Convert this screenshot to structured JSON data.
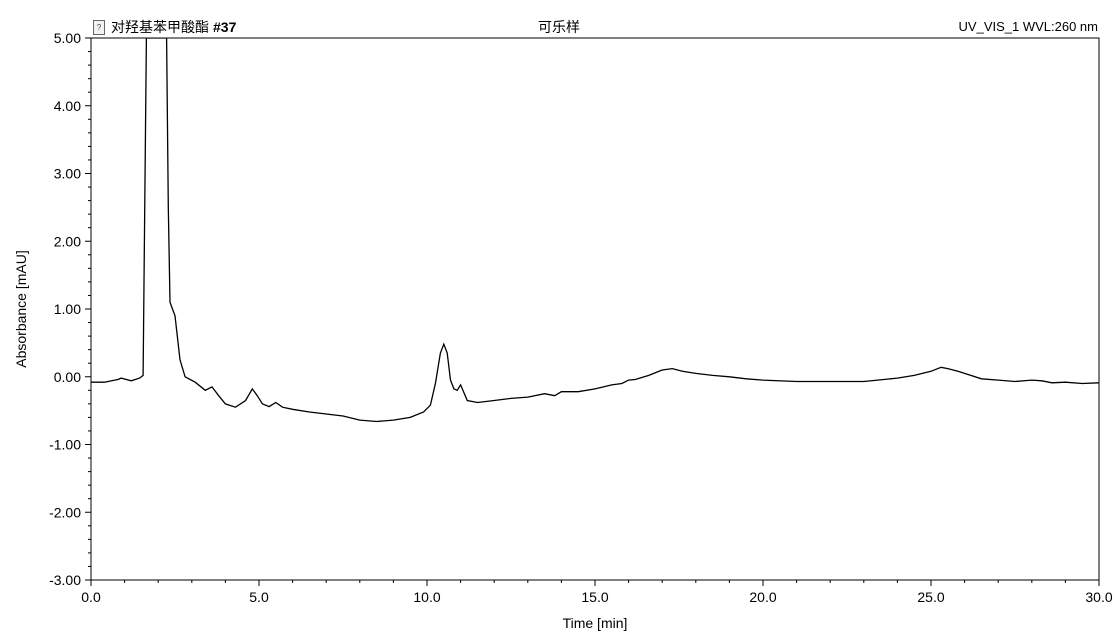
{
  "header": {
    "sample_name": "对羟基苯甲酸酯",
    "injection_number": "#37",
    "center_title": "可乐样",
    "channel": "UV_VIS_1 WVL:260 nm",
    "icon": "document-icon"
  },
  "chart_data": {
    "type": "line",
    "title": "可乐样",
    "xlabel": "Time [min]",
    "ylabel": "Absorbance [mAU]",
    "xlim": [
      0.0,
      30.0
    ],
    "ylim": [
      -3.0,
      5.0
    ],
    "x_ticks": [
      "0.0",
      "5.0",
      "10.0",
      "15.0",
      "20.0",
      "25.0",
      "30.0"
    ],
    "y_ticks": [
      "5.00",
      "4.00",
      "3.00",
      "2.00",
      "1.00",
      "0.00",
      "-1.00",
      "-2.00",
      "-3.00"
    ],
    "grid": false,
    "line_color": "#000000",
    "series": [
      {
        "x": [
          0.0,
          0.4,
          0.8,
          0.9,
          1.2,
          1.45,
          1.55,
          1.6,
          1.65,
          2.25,
          2.3,
          2.35,
          2.5,
          2.65,
          2.8,
          3.1,
          3.4,
          3.6,
          3.8,
          4.0,
          4.3,
          4.6,
          4.8,
          4.95,
          5.1,
          5.3,
          5.5,
          5.7,
          6.0,
          6.5,
          7.0,
          7.5,
          8.0,
          8.5,
          9.0,
          9.5,
          9.9,
          10.1,
          10.25,
          10.4,
          10.5,
          10.6,
          10.7,
          10.8,
          10.9,
          11.0,
          11.2,
          11.5,
          12.0,
          12.5,
          13.0,
          13.5,
          13.8,
          14.0,
          14.5,
          15.0,
          15.5,
          15.8,
          16.0,
          16.2,
          16.6,
          17.0,
          17.3,
          17.6,
          18.0,
          18.5,
          19.0,
          19.5,
          20.0,
          21.0,
          22.0,
          23.0,
          24.0,
          24.5,
          25.0,
          25.3,
          25.5,
          25.8,
          26.0,
          26.5,
          27.0,
          27.5,
          28.0,
          28.3,
          28.6,
          29.0,
          29.5,
          30.0
        ],
        "values": [
          -0.08,
          -0.08,
          -0.04,
          -0.02,
          -0.06,
          -0.02,
          0.02,
          2.6,
          5.0,
          5.0,
          2.5,
          1.1,
          0.9,
          0.25,
          0.0,
          -0.08,
          -0.2,
          -0.15,
          -0.28,
          -0.4,
          -0.45,
          -0.35,
          -0.18,
          -0.28,
          -0.4,
          -0.44,
          -0.38,
          -0.45,
          -0.48,
          -0.52,
          -0.55,
          -0.58,
          -0.64,
          -0.66,
          -0.64,
          -0.6,
          -0.52,
          -0.42,
          -0.1,
          0.35,
          0.48,
          0.35,
          -0.05,
          -0.18,
          -0.2,
          -0.12,
          -0.35,
          -0.38,
          -0.35,
          -0.32,
          -0.3,
          -0.25,
          -0.28,
          -0.22,
          -0.22,
          -0.18,
          -0.12,
          -0.1,
          -0.05,
          -0.04,
          0.02,
          0.1,
          0.12,
          0.08,
          0.05,
          0.02,
          0.0,
          -0.03,
          -0.05,
          -0.07,
          -0.07,
          -0.07,
          -0.02,
          0.02,
          0.08,
          0.14,
          0.12,
          0.08,
          0.05,
          -0.03,
          -0.05,
          -0.07,
          -0.05,
          -0.06,
          -0.09,
          -0.08,
          -0.1,
          -0.09
        ]
      }
    ]
  }
}
